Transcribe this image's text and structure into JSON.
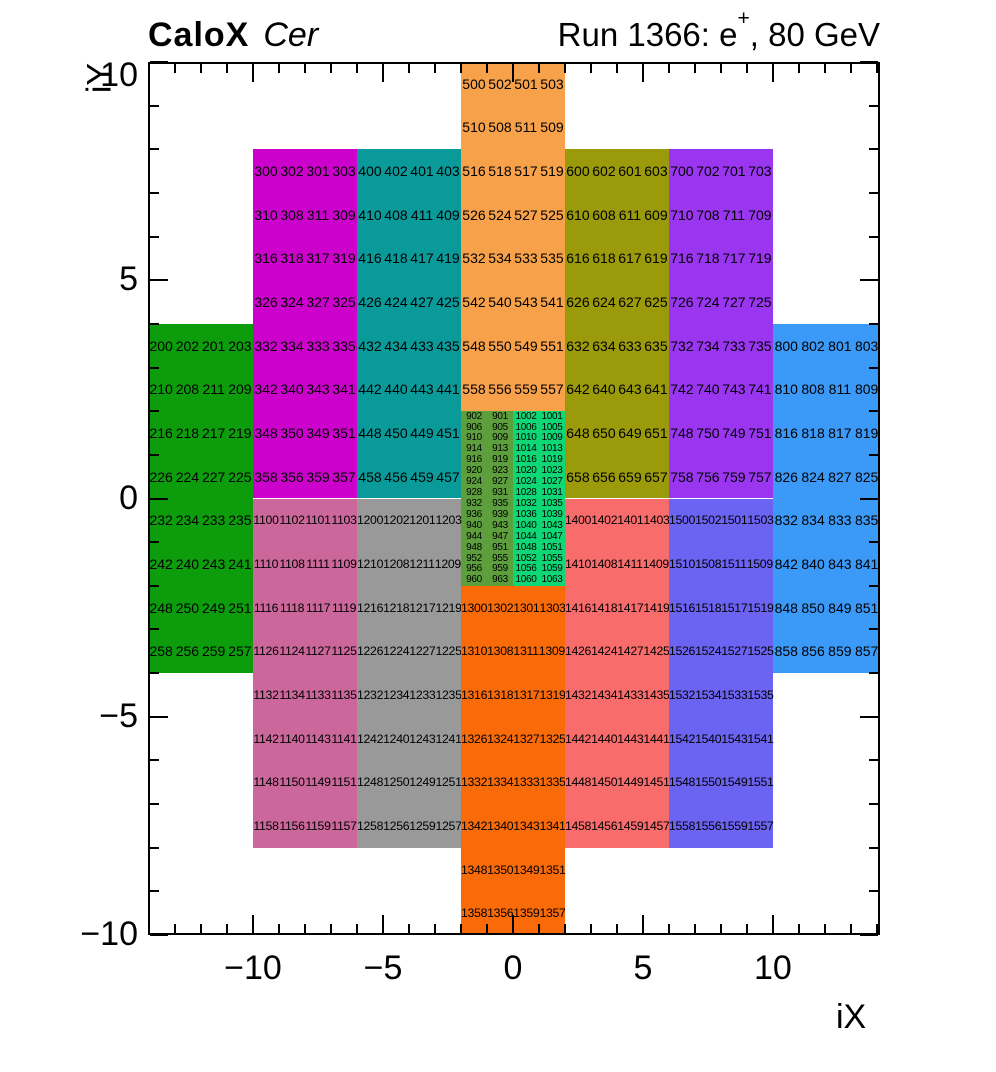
{
  "header": {
    "experiment": "CaloX",
    "subsystem": "Cer",
    "run_info_prefix": "Run 1366: e",
    "run_info_sup": "+",
    "run_info_suffix": ", 80 GeV"
  },
  "chart_data": {
    "type": "heatmap",
    "title": "CaloX Cer — Run 1366: e+, 80 GeV",
    "xlabel": "iX",
    "ylabel": "iY",
    "xlim": [
      -14.04,
      14.12
    ],
    "ylim": [
      -10,
      10
    ],
    "xticks": [
      -10,
      -5,
      0,
      5,
      10
    ],
    "xtick_labels": [
      "−10",
      "−5",
      "0",
      "5",
      "10"
    ],
    "yticks": [
      10,
      5,
      0,
      -5,
      -10
    ],
    "ytick_labels": [
      "10",
      "5",
      "0",
      "−5",
      "−10"
    ],
    "minor_tick_step": 1,
    "grid": false,
    "frame_color": "#000000",
    "background": "#ffffff",
    "regions": [
      {
        "name": "cer-200",
        "color": "#0c9c0c",
        "x": [
          -14.04,
          -10
        ],
        "y": [
          -4,
          4
        ],
        "font": 14,
        "rows": [
          [
            "200",
            "202",
            "201",
            "203"
          ],
          [
            "210",
            "208",
            "211",
            "209"
          ],
          [
            "216",
            "218",
            "217",
            "219"
          ],
          [
            "226",
            "224",
            "227",
            "225"
          ],
          [
            "232",
            "234",
            "233",
            "235"
          ],
          [
            "242",
            "240",
            "243",
            "241"
          ],
          [
            "248",
            "250",
            "249",
            "251"
          ],
          [
            "258",
            "256",
            "259",
            "257"
          ]
        ]
      },
      {
        "name": "cer-300",
        "color": "#cc02cc",
        "x": [
          -10,
          -6
        ],
        "y": [
          0,
          8
        ],
        "font": 14,
        "rows": [
          [
            "300",
            "302",
            "301",
            "303"
          ],
          [
            "310",
            "308",
            "311",
            "309"
          ],
          [
            "316",
            "318",
            "317",
            "319"
          ],
          [
            "326",
            "324",
            "327",
            "325"
          ],
          [
            "332",
            "334",
            "333",
            "335"
          ],
          [
            "342",
            "340",
            "343",
            "341"
          ],
          [
            "348",
            "350",
            "349",
            "351"
          ],
          [
            "358",
            "356",
            "359",
            "357"
          ]
        ]
      },
      {
        "name": "cer-400",
        "color": "#0a9a9a",
        "x": [
          -6,
          -2
        ],
        "y": [
          0,
          8
        ],
        "font": 14,
        "rows": [
          [
            "400",
            "402",
            "401",
            "403"
          ],
          [
            "410",
            "408",
            "411",
            "409"
          ],
          [
            "416",
            "418",
            "417",
            "419"
          ],
          [
            "426",
            "424",
            "427",
            "425"
          ],
          [
            "432",
            "434",
            "433",
            "435"
          ],
          [
            "442",
            "440",
            "443",
            "441"
          ],
          [
            "448",
            "450",
            "449",
            "451"
          ],
          [
            "458",
            "456",
            "459",
            "457"
          ]
        ]
      },
      {
        "name": "cer-500",
        "color": "#f7a14b",
        "x": [
          -2,
          2
        ],
        "y": [
          2,
          10
        ],
        "font": 14,
        "rows": [
          [
            "500",
            "502",
            "501",
            "503"
          ],
          [
            "510",
            "508",
            "511",
            "509"
          ],
          [
            "516",
            "518",
            "517",
            "519"
          ],
          [
            "526",
            "524",
            "527",
            "525"
          ],
          [
            "532",
            "534",
            "533",
            "535"
          ],
          [
            "542",
            "540",
            "543",
            "541"
          ],
          [
            "548",
            "550",
            "549",
            "551"
          ],
          [
            "558",
            "556",
            "559",
            "557"
          ]
        ]
      },
      {
        "name": "cer-600",
        "color": "#9a9a0b",
        "x": [
          2,
          6
        ],
        "y": [
          0,
          8
        ],
        "font": 14,
        "rows": [
          [
            "600",
            "602",
            "601",
            "603"
          ],
          [
            "610",
            "608",
            "611",
            "609"
          ],
          [
            "616",
            "618",
            "617",
            "619"
          ],
          [
            "626",
            "624",
            "627",
            "625"
          ],
          [
            "632",
            "634",
            "633",
            "635"
          ],
          [
            "642",
            "640",
            "643",
            "641"
          ],
          [
            "648",
            "650",
            "649",
            "651"
          ],
          [
            "658",
            "656",
            "659",
            "657"
          ]
        ]
      },
      {
        "name": "cer-700",
        "color": "#9a36f0",
        "x": [
          6,
          10
        ],
        "y": [
          0,
          8
        ],
        "font": 14,
        "rows": [
          [
            "700",
            "702",
            "701",
            "703"
          ],
          [
            "710",
            "708",
            "711",
            "709"
          ],
          [
            "716",
            "718",
            "717",
            "719"
          ],
          [
            "726",
            "724",
            "727",
            "725"
          ],
          [
            "732",
            "734",
            "733",
            "735"
          ],
          [
            "742",
            "740",
            "743",
            "741"
          ],
          [
            "748",
            "750",
            "749",
            "751"
          ],
          [
            "758",
            "756",
            "759",
            "757"
          ]
        ]
      },
      {
        "name": "cer-800",
        "color": "#3b99f8",
        "x": [
          10,
          14.12
        ],
        "y": [
          -4,
          4
        ],
        "font": 14,
        "rows": [
          [
            "800",
            "802",
            "801",
            "803"
          ],
          [
            "810",
            "808",
            "811",
            "809"
          ],
          [
            "816",
            "818",
            "817",
            "819"
          ],
          [
            "826",
            "824",
            "827",
            "825"
          ],
          [
            "832",
            "834",
            "833",
            "835"
          ],
          [
            "842",
            "840",
            "843",
            "841"
          ],
          [
            "848",
            "850",
            "849",
            "851"
          ],
          [
            "858",
            "856",
            "859",
            "857"
          ]
        ]
      },
      {
        "name": "cer-900-1000",
        "colors": [
          "#5d9e3d",
          "#0ed876"
        ],
        "x": [
          -2,
          2
        ],
        "y": [
          -2,
          2
        ],
        "font": 10,
        "rows": [
          [
            "902",
            "901",
            "1002",
            "1001"
          ],
          [
            "906",
            "905",
            "1006",
            "1005"
          ],
          [
            "910",
            "909",
            "1010",
            "1009"
          ],
          [
            "914",
            "913",
            "1014",
            "1013"
          ],
          [
            "916",
            "919",
            "1016",
            "1019"
          ],
          [
            "920",
            "923",
            "1020",
            "1023"
          ],
          [
            "924",
            "927",
            "1024",
            "1027"
          ],
          [
            "928",
            "931",
            "1028",
            "1031"
          ],
          [
            "932",
            "935",
            "1032",
            "1035"
          ],
          [
            "936",
            "939",
            "1036",
            "1039"
          ],
          [
            "940",
            "943",
            "1040",
            "1043"
          ],
          [
            "944",
            "947",
            "1044",
            "1047"
          ],
          [
            "948",
            "951",
            "1048",
            "1051"
          ],
          [
            "952",
            "955",
            "1052",
            "1055"
          ],
          [
            "956",
            "959",
            "1056",
            "1059"
          ],
          [
            "960",
            "963",
            "1060",
            "1063"
          ]
        ]
      },
      {
        "name": "cer-1100",
        "color": "#cb679a",
        "x": [
          -10,
          -6
        ],
        "y": [
          -8,
          0
        ],
        "font": 12.3,
        "rows": [
          [
            "1100",
            "1102",
            "1101",
            "1103"
          ],
          [
            "1110",
            "1108",
            "1111",
            "1109"
          ],
          [
            "1116",
            "1118",
            "1117",
            "1119"
          ],
          [
            "1126",
            "1124",
            "1127",
            "1125"
          ],
          [
            "1132",
            "1134",
            "1133",
            "1135"
          ],
          [
            "1142",
            "1140",
            "1143",
            "1141"
          ],
          [
            "1148",
            "1150",
            "1149",
            "1151"
          ],
          [
            "1158",
            "1156",
            "1159",
            "1157"
          ]
        ]
      },
      {
        "name": "cer-1200",
        "color": "#999999",
        "x": [
          -6,
          -2
        ],
        "y": [
          -8,
          0
        ],
        "font": 12.3,
        "rows": [
          [
            "1200",
            "1202",
            "1201",
            "1203"
          ],
          [
            "1210",
            "1208",
            "1211",
            "1209"
          ],
          [
            "1216",
            "1218",
            "1217",
            "1219"
          ],
          [
            "1226",
            "1224",
            "1227",
            "1225"
          ],
          [
            "1232",
            "1234",
            "1233",
            "1235"
          ],
          [
            "1242",
            "1240",
            "1243",
            "1241"
          ],
          [
            "1248",
            "1250",
            "1249",
            "1251"
          ],
          [
            "1258",
            "1256",
            "1259",
            "1257"
          ]
        ]
      },
      {
        "name": "cer-1300",
        "color": "#f96a08",
        "x": [
          -2,
          2
        ],
        "y": [
          -10,
          -2
        ],
        "font": 12.3,
        "rows": [
          [
            "1300",
            "1302",
            "1301",
            "1303"
          ],
          [
            "1310",
            "1308",
            "1311",
            "1309"
          ],
          [
            "1316",
            "1318",
            "1317",
            "1319"
          ],
          [
            "1326",
            "1324",
            "1327",
            "1325"
          ],
          [
            "1332",
            "1334",
            "1333",
            "1335"
          ],
          [
            "1342",
            "1340",
            "1343",
            "1341"
          ],
          [
            "1348",
            "1350",
            "1349",
            "1351"
          ],
          [
            "1358",
            "1356",
            "1359",
            "1357"
          ]
        ]
      },
      {
        "name": "cer-1400",
        "color": "#f96c6c",
        "x": [
          2,
          6
        ],
        "y": [
          -8,
          0
        ],
        "font": 12.3,
        "rows": [
          [
            "1400",
            "1402",
            "1401",
            "1403"
          ],
          [
            "1410",
            "1408",
            "1411",
            "1409"
          ],
          [
            "1416",
            "1418",
            "1417",
            "1419"
          ],
          [
            "1426",
            "1424",
            "1427",
            "1425"
          ],
          [
            "1432",
            "1434",
            "1433",
            "1435"
          ],
          [
            "1442",
            "1440",
            "1443",
            "1441"
          ],
          [
            "1448",
            "1450",
            "1449",
            "1451"
          ],
          [
            "1458",
            "1456",
            "1459",
            "1457"
          ]
        ]
      },
      {
        "name": "cer-1500",
        "color": "#6b63f1",
        "x": [
          6,
          10
        ],
        "y": [
          -8,
          0
        ],
        "font": 12.3,
        "rows": [
          [
            "1500",
            "1502",
            "1501",
            "1503"
          ],
          [
            "1510",
            "1508",
            "1511",
            "1509"
          ],
          [
            "1516",
            "1518",
            "1517",
            "1519"
          ],
          [
            "1526",
            "1524",
            "1527",
            "1525"
          ],
          [
            "1532",
            "1534",
            "1533",
            "1535"
          ],
          [
            "1542",
            "1540",
            "1543",
            "1541"
          ],
          [
            "1548",
            "1550",
            "1549",
            "1551"
          ],
          [
            "1558",
            "1556",
            "1559",
            "1557"
          ]
        ]
      }
    ]
  }
}
